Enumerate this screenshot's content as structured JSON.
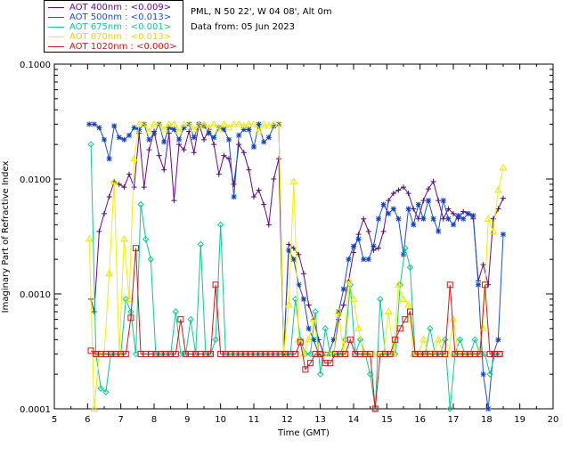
{
  "header": {
    "location": "PML, N 50 22', W 04 08', Alt 0m",
    "date_line": "Data from: 05 Jun 2023"
  },
  "chart_data": {
    "type": "line",
    "title": "",
    "xlabel": "Time (GMT)",
    "ylabel": "Imaginary Part of Refractive Index",
    "xlim": [
      5,
      20
    ],
    "ylim": [
      0.0001,
      0.1
    ],
    "yscale": "log",
    "x_ticks": [
      "5",
      "6",
      "7",
      "8",
      "9",
      "10",
      "11",
      "12",
      "13",
      "14",
      "15",
      "16",
      "17",
      "18",
      "19",
      "20"
    ],
    "y_ticks": [
      "0.0001",
      "0.0010",
      "0.0100",
      "0.1000"
    ],
    "legend_position": "top-left",
    "series": [
      {
        "name": "AOT  400nm : <0.009>",
        "color": "#6a0a8a",
        "marker": "plus",
        "x": [
          6.1,
          6.2,
          6.35,
          6.5,
          6.65,
          6.8,
          6.95,
          7.1,
          7.25,
          7.4,
          7.55,
          7.7,
          7.85,
          8.0,
          8.15,
          8.3,
          8.45,
          8.6,
          8.75,
          8.9,
          9.05,
          9.2,
          9.35,
          9.5,
          9.65,
          9.8,
          9.95,
          10.1,
          10.25,
          10.4,
          10.55,
          10.7,
          10.85,
          11.0,
          11.15,
          11.3,
          11.45,
          11.6,
          11.75,
          11.9,
          12.05,
          12.2,
          12.35,
          12.5,
          12.65,
          12.8,
          12.95,
          13.1,
          13.25,
          13.4,
          13.55,
          13.7,
          13.85,
          14.0,
          14.15,
          14.3,
          14.45,
          14.6,
          14.75,
          14.9,
          15.05,
          15.2,
          15.35,
          15.5,
          15.65,
          15.8,
          15.95,
          16.1,
          16.25,
          16.4,
          16.55,
          16.7,
          16.85,
          17.0,
          17.15,
          17.3,
          17.45,
          17.6,
          17.75,
          17.9,
          18.05,
          18.2,
          18.35,
          18.5
        ],
        "y": [
          0.0009,
          0.0007,
          0.0035,
          0.005,
          0.007,
          0.0095,
          0.009,
          0.0085,
          0.011,
          0.0085,
          0.025,
          0.0085,
          0.018,
          0.026,
          0.016,
          0.012,
          0.025,
          0.0065,
          0.02,
          0.018,
          0.026,
          0.017,
          0.03,
          0.022,
          0.027,
          0.02,
          0.011,
          0.016,
          0.015,
          0.009,
          0.02,
          0.017,
          0.012,
          0.007,
          0.008,
          0.006,
          0.004,
          0.01,
          0.015,
          0.0003,
          0.0027,
          0.0025,
          0.0022,
          0.0015,
          0.0008,
          0.0006,
          0.0004,
          0.0003,
          0.0003,
          0.0003,
          0.0006,
          0.0008,
          0.0013,
          0.0023,
          0.0033,
          0.0045,
          0.0035,
          0.0024,
          0.0025,
          0.0035,
          0.0065,
          0.0075,
          0.008,
          0.0085,
          0.0075,
          0.0055,
          0.0045,
          0.0065,
          0.0082,
          0.0095,
          0.0065,
          0.0045,
          0.0055,
          0.005,
          0.0045,
          0.0052,
          0.005,
          0.0045,
          0.0013,
          0.0018,
          0.0012,
          0.0045,
          0.0055,
          0.0068
        ]
      },
      {
        "name": "AOT  500nm : <0.013>",
        "color": "#1a4fd6",
        "marker": "star",
        "x": [
          6.05,
          6.2,
          6.35,
          6.5,
          6.65,
          6.8,
          6.95,
          7.1,
          7.25,
          7.4,
          7.55,
          7.7,
          7.85,
          8.0,
          8.15,
          8.3,
          8.45,
          8.6,
          8.75,
          8.9,
          9.05,
          9.2,
          9.35,
          9.5,
          9.65,
          9.8,
          9.95,
          10.1,
          10.25,
          10.4,
          10.55,
          10.7,
          10.85,
          11.0,
          11.15,
          11.3,
          11.45,
          11.6,
          11.75,
          11.9,
          12.05,
          12.2,
          12.35,
          12.5,
          12.65,
          12.8,
          12.95,
          13.1,
          13.25,
          13.4,
          13.55,
          13.7,
          13.85,
          14.0,
          14.15,
          14.3,
          14.45,
          14.6,
          14.75,
          14.9,
          15.05,
          15.2,
          15.35,
          15.5,
          15.65,
          15.8,
          15.95,
          16.1,
          16.25,
          16.4,
          16.55,
          16.7,
          16.85,
          17.0,
          17.15,
          17.3,
          17.45,
          17.6,
          17.75,
          17.9,
          18.05,
          18.2,
          18.35,
          18.5
        ],
        "y": [
          0.03,
          0.03,
          0.028,
          0.022,
          0.015,
          0.029,
          0.023,
          0.022,
          0.024,
          0.028,
          0.027,
          0.03,
          0.022,
          0.025,
          0.03,
          0.021,
          0.028,
          0.027,
          0.022,
          0.028,
          0.03,
          0.023,
          0.03,
          0.029,
          0.025,
          0.023,
          0.028,
          0.027,
          0.022,
          0.007,
          0.024,
          0.027,
          0.027,
          0.019,
          0.03,
          0.021,
          0.023,
          0.029,
          0.03,
          0.0003,
          0.0024,
          0.002,
          0.0012,
          0.0009,
          0.0005,
          0.0004,
          0.0003,
          0.0003,
          0.0003,
          0.0004,
          0.0007,
          0.0011,
          0.002,
          0.0026,
          0.003,
          0.002,
          0.002,
          0.0026,
          0.0045,
          0.006,
          0.005,
          0.0055,
          0.0045,
          0.0022,
          0.0055,
          0.004,
          0.006,
          0.0045,
          0.0065,
          0.0045,
          0.0035,
          0.0065,
          0.0045,
          0.004,
          0.0048,
          0.0045,
          0.005,
          0.0048,
          0.0012,
          0.0002,
          0.0001,
          0.0003,
          0.0004,
          0.0033
        ]
      },
      {
        "name": "AOT  675nm : <0.001>",
        "color": "#10c894",
        "marker": "diamond",
        "x": [
          6.1,
          6.25,
          6.4,
          6.55,
          6.7,
          6.85,
          7.0,
          7.15,
          7.3,
          7.45,
          7.6,
          7.75,
          7.9,
          8.05,
          8.2,
          8.35,
          8.5,
          8.65,
          8.8,
          8.95,
          9.1,
          9.25,
          9.4,
          9.55,
          9.7,
          9.85,
          10.0,
          10.15,
          10.3,
          10.45,
          10.6,
          10.75,
          10.9,
          11.05,
          11.2,
          11.35,
          11.5,
          11.65,
          11.8,
          11.95,
          12.1,
          12.25,
          12.4,
          12.55,
          12.7,
          12.85,
          13.0,
          13.15,
          13.3,
          13.45,
          13.6,
          13.75,
          13.9,
          14.05,
          14.2,
          14.35,
          14.5,
          14.65,
          14.8,
          14.95,
          15.1,
          15.25,
          15.4,
          15.55,
          15.7,
          15.85,
          16.0,
          16.15,
          16.3,
          16.45,
          16.6,
          16.75,
          16.9,
          17.05,
          17.2,
          17.35,
          17.5,
          17.65,
          17.8,
          17.95,
          18.1,
          18.25,
          18.4
        ],
        "y": [
          0.02,
          0.0003,
          0.00015,
          0.00014,
          0.0003,
          0.0003,
          0.0003,
          0.0009,
          0.0007,
          0.0003,
          0.006,
          0.003,
          0.002,
          0.0003,
          0.0003,
          0.0003,
          0.0003,
          0.0007,
          0.0003,
          0.0003,
          0.0006,
          0.0003,
          0.0027,
          0.0003,
          0.0003,
          0.0004,
          0.004,
          0.0003,
          0.0003,
          0.0003,
          0.0003,
          0.0003,
          0.0003,
          0.0003,
          0.0003,
          0.0003,
          0.0003,
          0.0003,
          0.0003,
          0.0003,
          0.0003,
          0.0009,
          0.0004,
          0.0003,
          0.0003,
          0.0007,
          0.0002,
          0.0005,
          0.0003,
          0.0003,
          0.0003,
          0.0004,
          0.0012,
          0.0003,
          0.0004,
          0.0003,
          0.0002,
          0.0001,
          0.0009,
          0.0003,
          0.0003,
          0.0003,
          0.0012,
          0.0025,
          0.0017,
          0.0003,
          0.0003,
          0.0003,
          0.0005,
          0.0003,
          0.0003,
          0.0004,
          0.0001,
          0.0003,
          0.0004,
          0.0003,
          0.0003,
          0.0004,
          0.0003,
          0.0003,
          0.0002,
          0.0003,
          0.0003
        ]
      },
      {
        "name": "AOT  870nm : <0.013>",
        "color": "#f0f000",
        "marker": "triangle",
        "x": [
          6.05,
          6.2,
          6.35,
          6.5,
          6.65,
          6.8,
          6.95,
          7.1,
          7.25,
          7.4,
          7.55,
          7.7,
          7.85,
          8.0,
          8.15,
          8.3,
          8.45,
          8.6,
          8.75,
          8.9,
          9.05,
          9.2,
          9.35,
          9.5,
          9.65,
          9.8,
          9.95,
          10.1,
          10.25,
          10.4,
          10.55,
          10.7,
          10.85,
          11.0,
          11.15,
          11.3,
          11.45,
          11.6,
          11.75,
          11.9,
          12.05,
          12.2,
          12.35,
          12.5,
          12.65,
          12.8,
          12.95,
          13.1,
          13.25,
          13.4,
          13.55,
          13.7,
          13.85,
          14.0,
          14.15,
          14.3,
          14.45,
          14.6,
          14.75,
          14.9,
          15.05,
          15.2,
          15.35,
          15.5,
          15.65,
          15.8,
          15.95,
          16.1,
          16.25,
          16.4,
          16.55,
          16.7,
          16.85,
          17.0,
          17.15,
          17.3,
          17.45,
          17.6,
          17.75,
          17.9,
          18.05,
          18.2,
          18.35,
          18.5
        ],
        "y": [
          0.003,
          0.0001,
          0.0003,
          0.0003,
          0.0015,
          0.0095,
          0.0003,
          0.003,
          0.0009,
          0.015,
          0.03,
          0.03,
          0.026,
          0.03,
          0.03,
          0.027,
          0.03,
          0.03,
          0.026,
          0.03,
          0.03,
          0.027,
          0.029,
          0.03,
          0.028,
          0.03,
          0.027,
          0.03,
          0.028,
          0.03,
          0.03,
          0.029,
          0.03,
          0.03,
          0.026,
          0.03,
          0.029,
          0.03,
          0.03,
          0.0003,
          0.0008,
          0.0095,
          0.0004,
          0.0003,
          0.0004,
          0.0006,
          0.0003,
          0.0003,
          0.0003,
          0.0003,
          0.0007,
          0.0003,
          0.0013,
          0.0009,
          0.0005,
          0.0003,
          0.0003,
          0.0003,
          0.0003,
          0.0003,
          0.0007,
          0.0003,
          0.0012,
          0.0009,
          0.0008,
          0.0003,
          0.0003,
          0.0004,
          0.0003,
          0.0003,
          0.0004,
          0.0003,
          0.0003,
          0.0006,
          0.0003,
          0.0003,
          0.0003,
          0.0003,
          0.0003,
          0.0005,
          0.0045,
          0.0035,
          0.008,
          0.0125
        ]
      },
      {
        "name": "AOT 1020nm : <0.000>",
        "color": "#cc1a1a",
        "marker": "square",
        "x": [
          6.1,
          6.25,
          6.4,
          6.55,
          6.7,
          6.85,
          7.0,
          7.15,
          7.3,
          7.45,
          7.6,
          7.75,
          7.9,
          8.05,
          8.2,
          8.35,
          8.5,
          8.65,
          8.8,
          8.95,
          9.1,
          9.25,
          9.4,
          9.55,
          9.7,
          9.85,
          10.0,
          10.15,
          10.3,
          10.45,
          10.6,
          10.75,
          10.9,
          11.05,
          11.2,
          11.35,
          11.5,
          11.65,
          11.8,
          11.95,
          12.1,
          12.25,
          12.4,
          12.55,
          12.7,
          12.85,
          13.0,
          13.15,
          13.3,
          13.45,
          13.6,
          13.75,
          13.9,
          14.05,
          14.2,
          14.35,
          14.5,
          14.65,
          14.8,
          14.95,
          15.1,
          15.25,
          15.4,
          15.55,
          15.7,
          15.85,
          16.0,
          16.15,
          16.3,
          16.45,
          16.6,
          16.75,
          16.9,
          17.05,
          17.2,
          17.35,
          17.5,
          17.65,
          17.8,
          17.95,
          18.1,
          18.25,
          18.4
        ],
        "y": [
          0.00032,
          0.0003,
          0.0003,
          0.0003,
          0.0003,
          0.0003,
          0.0003,
          0.0003,
          0.00062,
          0.0025,
          0.0003,
          0.0003,
          0.0003,
          0.0003,
          0.0003,
          0.0003,
          0.0003,
          0.0003,
          0.0006,
          0.0003,
          0.0003,
          0.0003,
          0.0003,
          0.0003,
          0.0003,
          0.0012,
          0.0003,
          0.0003,
          0.0003,
          0.0003,
          0.0003,
          0.0003,
          0.0003,
          0.0003,
          0.0003,
          0.0003,
          0.0003,
          0.0003,
          0.0003,
          0.0003,
          0.0003,
          0.0003,
          0.00038,
          0.00022,
          0.00025,
          0.0003,
          0.0003,
          0.00025,
          0.00025,
          0.0003,
          0.0003,
          0.0003,
          0.0004,
          0.0003,
          0.0003,
          0.0003,
          0.0003,
          0.0001,
          0.0003,
          0.0003,
          0.0003,
          0.0004,
          0.0005,
          0.0006,
          0.0007,
          0.0003,
          0.0003,
          0.0003,
          0.0003,
          0.0003,
          0.0003,
          0.0003,
          0.0012,
          0.0003,
          0.0003,
          0.0003,
          0.0003,
          0.0003,
          0.0003,
          0.0012,
          0.0003,
          0.0003,
          0.0003
        ]
      }
    ]
  }
}
